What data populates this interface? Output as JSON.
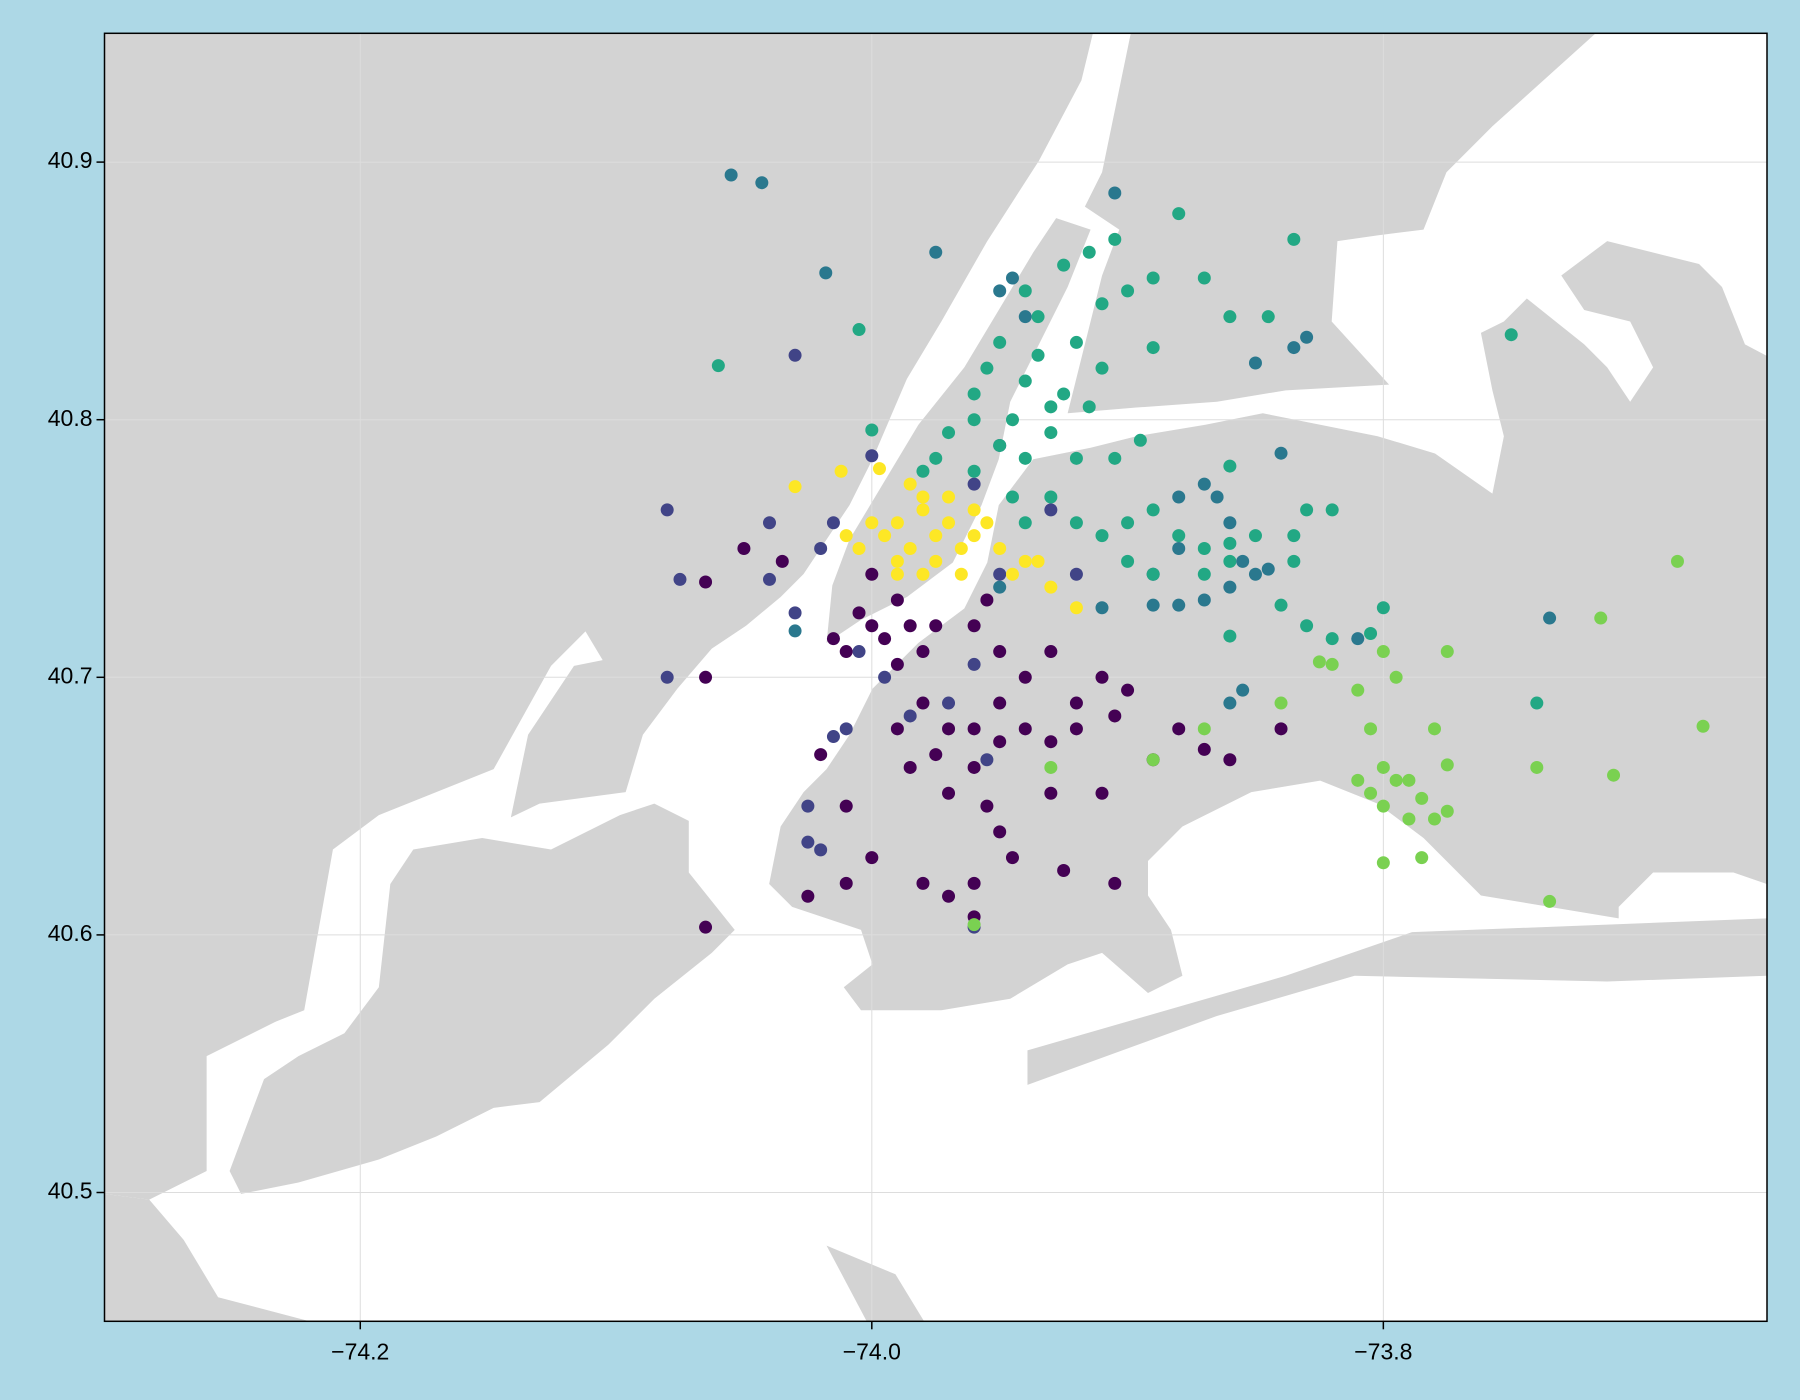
{
  "chart_data": {
    "type": "scatter",
    "xlim": [
      -74.3,
      -73.65
    ],
    "ylim": [
      40.45,
      40.95
    ],
    "xticks": [
      {
        "value": -74.2,
        "label": "−74.2"
      },
      {
        "value": -74.0,
        "label": "−74.0"
      },
      {
        "value": -73.8,
        "label": "−73.8"
      }
    ],
    "yticks": [
      40.5,
      40.6,
      40.7,
      40.8,
      40.9
    ],
    "grid": true,
    "series": [
      {
        "color": "#440154",
        "x": [
          -74.0,
          -73.99,
          -74.005,
          -73.985,
          -74.01,
          -73.995,
          -73.98,
          -73.975,
          -73.99,
          -74.0,
          -74.015,
          -73.96,
          -73.95,
          -73.955,
          -73.94,
          -73.93,
          -73.92,
          -73.91,
          -73.95,
          -73.96,
          -73.97,
          -73.98,
          -73.99,
          -73.975,
          -73.96,
          -73.95,
          -73.94,
          -73.93,
          -73.92,
          -73.905,
          -73.9,
          -73.985,
          -73.97,
          -73.955,
          -73.95,
          -73.945,
          -73.96,
          -73.97,
          -73.98,
          -74.0,
          -74.01,
          -74.025,
          -73.96,
          -73.905,
          -73.91,
          -73.89,
          -73.87,
          -73.86,
          -73.84,
          -73.88,
          -74.065,
          -74.065,
          -74.05,
          -74.035,
          -74.065,
          -73.925,
          -73.93,
          -74.01,
          -74.02
        ],
        "values": [
          40.74,
          40.73,
          40.725,
          40.72,
          40.71,
          40.715,
          40.71,
          40.72,
          40.705,
          40.72,
          40.715,
          40.72,
          40.71,
          40.73,
          40.7,
          40.71,
          40.69,
          40.7,
          40.69,
          40.68,
          40.68,
          40.69,
          40.68,
          40.67,
          40.665,
          40.675,
          40.68,
          40.675,
          40.68,
          40.685,
          40.695,
          40.665,
          40.655,
          40.65,
          40.64,
          40.63,
          40.62,
          40.615,
          40.62,
          40.63,
          40.62,
          40.615,
          40.607,
          40.62,
          40.655,
          40.668,
          40.672,
          40.668,
          40.68,
          40.68,
          40.7,
          40.737,
          40.75,
          40.745,
          40.603,
          40.625,
          40.655,
          40.65,
          40.67
        ]
      },
      {
        "color": "#414487",
        "x": [
          -74.08,
          -74.075,
          -74.08,
          -74.03,
          -74.02,
          -74.04,
          -74.04,
          -74.015,
          -74.005,
          -73.995,
          -74.01,
          -73.985,
          -73.97,
          -73.955,
          -74.025,
          -74.02,
          -74.025,
          -73.96,
          -73.96,
          -73.95,
          -74.0,
          -74.03,
          -73.96,
          -74.015,
          -73.89,
          -73.92,
          -73.95,
          -73.93
        ],
        "values": [
          40.765,
          40.738,
          40.7,
          40.725,
          40.75,
          40.738,
          40.76,
          40.76,
          40.71,
          40.7,
          40.68,
          40.685,
          40.69,
          40.668,
          40.636,
          40.633,
          40.65,
          40.603,
          40.775,
          40.79,
          40.786,
          40.825,
          40.705,
          40.677,
          40.74,
          40.74,
          40.74,
          40.765
        ]
      },
      {
        "color": "#2a788e",
        "x": [
          -74.055,
          -74.043,
          -73.975,
          -74.018,
          -73.905,
          -73.945,
          -73.94,
          -73.95,
          -73.83,
          -73.835,
          -73.85,
          -73.84,
          -73.87,
          -73.865,
          -73.86,
          -73.855,
          -73.86,
          -73.85,
          -73.845,
          -73.87,
          -73.89,
          -73.91,
          -73.95,
          -73.88,
          -73.88,
          -73.855,
          -73.86,
          -73.81,
          -73.735,
          -73.88,
          -74.03
        ],
        "values": [
          40.895,
          40.892,
          40.865,
          40.857,
          40.888,
          40.855,
          40.84,
          40.85,
          40.832,
          40.828,
          40.822,
          40.787,
          40.775,
          40.77,
          40.76,
          40.745,
          40.735,
          40.74,
          40.742,
          40.73,
          40.728,
          40.727,
          40.735,
          40.75,
          40.77,
          40.695,
          40.69,
          40.715,
          40.723,
          40.728,
          40.718
        ]
      },
      {
        "color": "#22a884",
        "x": [
          -73.96,
          -73.955,
          -73.95,
          -73.945,
          -73.94,
          -73.935,
          -73.93,
          -73.95,
          -73.96,
          -73.97,
          -73.975,
          -73.98,
          -73.96,
          -73.945,
          -73.94,
          -73.93,
          -73.925,
          -73.935,
          -73.94,
          -73.925,
          -73.915,
          -73.905,
          -73.91,
          -73.9,
          -73.89,
          -73.92,
          -73.91,
          -73.915,
          -73.905,
          -73.92,
          -73.93,
          -73.94,
          -73.92,
          -73.91,
          -73.9,
          -73.89,
          -73.88,
          -73.87,
          -73.86,
          -73.85,
          -73.9,
          -73.89,
          -73.87,
          -73.86,
          -73.84,
          -73.83,
          -73.82,
          -73.83,
          -73.835,
          -73.835,
          -73.88,
          -73.87,
          -73.86,
          -73.845,
          -73.835,
          -73.75,
          -74.06,
          -74.005,
          -74.0,
          -73.89,
          -73.895,
          -73.86,
          -73.8,
          -73.805,
          -73.82,
          -73.74,
          -73.86
        ],
        "values": [
          40.81,
          40.82,
          40.83,
          40.8,
          40.815,
          40.825,
          40.805,
          40.79,
          40.8,
          40.795,
          40.785,
          40.78,
          40.78,
          40.77,
          40.785,
          40.795,
          40.81,
          40.84,
          40.85,
          40.86,
          40.865,
          40.87,
          40.845,
          40.85,
          40.855,
          40.83,
          40.82,
          40.805,
          40.785,
          40.785,
          40.77,
          40.76,
          40.76,
          40.755,
          40.76,
          40.765,
          40.755,
          40.75,
          40.752,
          40.755,
          40.745,
          40.74,
          40.74,
          40.745,
          40.728,
          40.72,
          40.715,
          40.765,
          40.755,
          40.745,
          40.88,
          40.855,
          40.84,
          40.84,
          40.87,
          40.833,
          40.821,
          40.835,
          40.796,
          40.828,
          40.792,
          40.782,
          40.727,
          40.717,
          40.765,
          40.69,
          40.716
        ]
      },
      {
        "color": "#7ad151",
        "x": [
          -73.82,
          -73.81,
          -73.805,
          -73.8,
          -73.795,
          -73.8,
          -73.79,
          -73.78,
          -73.775,
          -73.785,
          -73.79,
          -73.805,
          -73.81,
          -73.8,
          -73.795,
          -73.775,
          -73.78,
          -73.775,
          -73.74,
          -73.715,
          -73.685,
          -73.675,
          -73.71,
          -73.735,
          -73.785,
          -73.8,
          -73.89,
          -73.87,
          -73.84,
          -73.825,
          -73.93,
          -73.96
        ],
        "values": [
          40.705,
          40.695,
          40.68,
          40.665,
          40.66,
          40.65,
          40.645,
          40.645,
          40.648,
          40.653,
          40.66,
          40.655,
          40.66,
          40.71,
          40.7,
          40.71,
          40.68,
          40.666,
          40.665,
          40.723,
          40.745,
          40.681,
          40.662,
          40.613,
          40.63,
          40.628,
          40.668,
          40.68,
          40.69,
          40.706,
          40.665,
          40.604
        ]
      },
      {
        "color": "#fde725",
        "x": [
          -73.99,
          -73.98,
          -73.985,
          -73.975,
          -73.99,
          -73.995,
          -73.98,
          -73.97,
          -73.965,
          -73.96,
          -73.955,
          -73.975,
          -73.985,
          -73.97,
          -73.96,
          -73.95,
          -73.94,
          -73.945,
          -73.935,
          -74.0,
          -74.005,
          -73.99,
          -73.98,
          -74.03,
          -74.012,
          -73.997,
          -73.92,
          -73.93,
          -74.01,
          -73.965
        ],
        "values": [
          40.76,
          40.765,
          40.75,
          40.755,
          40.745,
          40.755,
          40.77,
          40.76,
          40.75,
          40.755,
          40.76,
          40.745,
          40.775,
          40.77,
          40.765,
          40.75,
          40.745,
          40.74,
          40.745,
          40.76,
          40.75,
          40.74,
          40.74,
          40.774,
          40.78,
          40.781,
          40.727,
          40.735,
          40.755,
          40.74
        ]
      }
    ]
  }
}
